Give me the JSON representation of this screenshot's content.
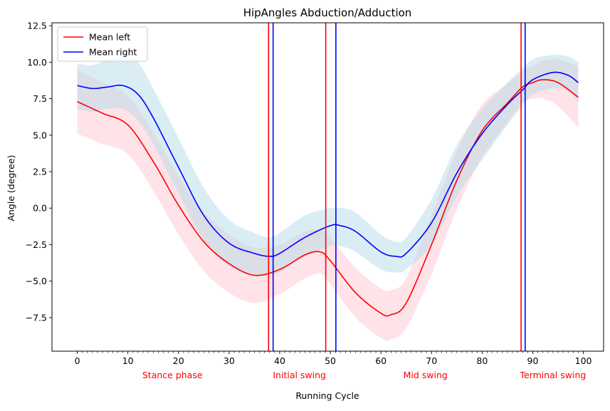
{
  "chart_data": {
    "type": "line",
    "title": "HipAngles Abduction/Adduction",
    "xlabel": "Running Cycle",
    "ylabel": "Angle (degree)",
    "xlim": [
      -5,
      104
    ],
    "ylim": [
      -9.8,
      12.7
    ],
    "xticks": [
      0,
      10,
      20,
      30,
      40,
      50,
      60,
      70,
      80,
      90,
      100
    ],
    "minor_xtick_step": 1,
    "yticks": [
      -7.5,
      -5.0,
      -2.5,
      0.0,
      2.5,
      5.0,
      7.5,
      10.0,
      12.5
    ],
    "ytick_labels": [
      "−7.5",
      "−5.0",
      "−2.5",
      "0.0",
      "2.5",
      "5.0",
      "7.5",
      "10.0",
      "12.5"
    ],
    "grid": false,
    "legend_position": "top-left",
    "series": [
      {
        "name": "Mean left",
        "color": "#ff0000",
        "band_color": "#ffc0cb",
        "x": [
          0,
          5,
          10,
          15,
          20,
          25,
          30,
          35,
          40,
          45,
          48,
          50,
          55,
          60,
          62,
          65,
          70,
          75,
          80,
          85,
          88,
          90,
          92,
          95,
          99
        ],
        "y": [
          7.3,
          6.5,
          5.7,
          3.2,
          0.2,
          -2.3,
          -3.8,
          -4.6,
          -4.2,
          -3.2,
          -3.0,
          -3.6,
          -5.8,
          -7.2,
          -7.3,
          -6.5,
          -2.5,
          1.9,
          5.3,
          7.2,
          8.3,
          8.6,
          8.8,
          8.6,
          7.6
        ],
        "lower": [
          5.1,
          4.4,
          3.7,
          1.2,
          -1.8,
          -4.3,
          -5.8,
          -6.5,
          -5.9,
          -4.8,
          -4.5,
          -5.2,
          -7.5,
          -8.9,
          -9.0,
          -8.2,
          -4.5,
          -0.1,
          3.5,
          5.9,
          7.2,
          7.5,
          7.5,
          7.0,
          5.5
        ],
        "upper": [
          9.5,
          8.6,
          7.7,
          5.2,
          2.2,
          -0.3,
          -1.8,
          -2.7,
          -2.5,
          -1.6,
          -1.5,
          -2.0,
          -4.1,
          -5.5,
          -5.6,
          -4.8,
          -0.5,
          3.9,
          7.1,
          8.5,
          9.4,
          9.7,
          10.1,
          10.2,
          9.7
        ]
      },
      {
        "name": "Mean right",
        "color": "#0000ff",
        "band_color": "#add8e6",
        "x": [
          0,
          3,
          6,
          9,
          12,
          15,
          20,
          25,
          30,
          35,
          38,
          40,
          45,
          50,
          52,
          55,
          60,
          63,
          65,
          70,
          75,
          80,
          85,
          88,
          90,
          94,
          97,
          99
        ],
        "y": [
          8.4,
          8.2,
          8.3,
          8.4,
          7.8,
          6.2,
          2.8,
          -0.5,
          -2.4,
          -3.1,
          -3.3,
          -3.1,
          -2.0,
          -1.2,
          -1.2,
          -1.6,
          -3.0,
          -3.3,
          -3.1,
          -1.0,
          2.4,
          5.1,
          7.1,
          8.1,
          8.8,
          9.3,
          9.1,
          8.6
        ],
        "lower": [
          6.8,
          6.6,
          6.8,
          6.8,
          6.0,
          4.4,
          1.0,
          -2.2,
          -4.0,
          -4.5,
          -4.6,
          -4.4,
          -3.3,
          -2.6,
          -2.6,
          -3.0,
          -4.2,
          -4.4,
          -4.2,
          -2.5,
          0.8,
          3.3,
          5.7,
          7.0,
          7.8,
          8.2,
          8.0,
          7.2
        ],
        "upper": [
          9.9,
          9.8,
          10.2,
          10.5,
          10.0,
          8.2,
          4.8,
          1.4,
          -0.8,
          -1.7,
          -2.0,
          -1.7,
          -0.5,
          0.0,
          0.0,
          -0.3,
          -1.8,
          -2.3,
          -2.0,
          0.6,
          4.3,
          6.8,
          8.6,
          9.6,
          10.2,
          10.5,
          10.4,
          10.0
        ]
      }
    ],
    "phase_lines": [
      {
        "x": 37.8,
        "color": "#ff0000"
      },
      {
        "x": 38.7,
        "color": "#0000ff"
      },
      {
        "x": 49.1,
        "color": "#ff0000"
      },
      {
        "x": 51.1,
        "color": "#0000ff"
      },
      {
        "x": 87.7,
        "color": "#ff0000"
      },
      {
        "x": 88.5,
        "color": "#0000ff"
      }
    ],
    "phase_labels": [
      {
        "text": "Stance phase",
        "x": 18.8
      },
      {
        "text": "Initial swing",
        "x": 43.9
      },
      {
        "text": "Mid swing",
        "x": 68.8
      },
      {
        "text": "Terminal swing",
        "x": 94.0
      }
    ],
    "phase_label_color": "#ff0000"
  }
}
